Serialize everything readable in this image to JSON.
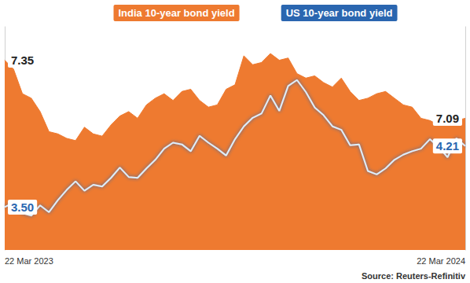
{
  "chart_data": {
    "type": "line",
    "categories": [
      "22 Mar 2023",
      null,
      null,
      null,
      null,
      null,
      null,
      null,
      null,
      null,
      null,
      null,
      null,
      null,
      null,
      null,
      null,
      null,
      null,
      null,
      null,
      null,
      null,
      null,
      null,
      null,
      null,
      null,
      null,
      null,
      null,
      null,
      null,
      null,
      null,
      null,
      null,
      null,
      null,
      null,
      null,
      null,
      null,
      null,
      null,
      null,
      null,
      null,
      null,
      null,
      null,
      null,
      "22 Mar 2024"
    ],
    "series": [
      {
        "name": "India 10-year bond yield",
        "type": "area",
        "color": "#ee7a30",
        "values": [
          7.35,
          7.31,
          7.2,
          7.18,
          7.12,
          7.03,
          7.02,
          7.0,
          6.99,
          7.05,
          7.02,
          7.01,
          7.06,
          7.1,
          7.12,
          7.09,
          7.15,
          7.18,
          7.2,
          7.17,
          7.21,
          7.22,
          7.17,
          7.14,
          7.15,
          7.22,
          7.24,
          7.37,
          7.33,
          7.34,
          7.38,
          7.35,
          7.36,
          7.29,
          7.27,
          7.28,
          7.25,
          7.23,
          7.27,
          7.21,
          7.17,
          7.18,
          7.2,
          7.21,
          7.18,
          7.15,
          7.14,
          7.09,
          7.08,
          7.06,
          7.06,
          7.08,
          7.09
        ],
        "value_labels": [
          "7.35",
          null,
          null,
          null,
          null,
          null,
          null,
          null,
          null,
          null,
          null,
          null,
          null,
          null,
          null,
          null,
          null,
          null,
          null,
          null,
          null,
          null,
          null,
          null,
          null,
          null,
          null,
          null,
          null,
          null,
          null,
          null,
          null,
          null,
          null,
          null,
          null,
          null,
          null,
          null,
          null,
          null,
          null,
          null,
          null,
          null,
          null,
          null,
          null,
          null,
          null,
          null,
          "7.09"
        ]
      },
      {
        "name": "US 10-year bond yield",
        "type": "line",
        "color": "#2a66b0",
        "axis": "y2",
        "values": [
          3.5,
          3.55,
          3.43,
          3.4,
          3.52,
          3.44,
          3.58,
          3.7,
          3.8,
          3.69,
          3.76,
          3.74,
          3.84,
          3.96,
          3.85,
          3.84,
          3.95,
          4.05,
          4.18,
          4.25,
          4.23,
          4.15,
          4.33,
          4.25,
          4.18,
          4.1,
          4.29,
          4.44,
          4.54,
          4.59,
          4.8,
          4.62,
          4.91,
          4.98,
          4.84,
          4.66,
          4.57,
          4.44,
          4.4,
          4.22,
          4.23,
          3.92,
          3.88,
          3.95,
          4.05,
          4.11,
          4.15,
          4.18,
          4.29,
          4.2,
          4.08,
          4.3,
          4.21
        ],
        "value_labels": [
          "3.50",
          null,
          null,
          null,
          null,
          null,
          null,
          null,
          null,
          null,
          null,
          null,
          null,
          null,
          null,
          null,
          null,
          null,
          null,
          null,
          null,
          null,
          null,
          null,
          null,
          null,
          null,
          null,
          null,
          null,
          null,
          null,
          null,
          null,
          null,
          null,
          null,
          null,
          null,
          null,
          null,
          null,
          null,
          null,
          null,
          null,
          null,
          null,
          null,
          null,
          null,
          null,
          "4.21"
        ]
      }
    ],
    "ylim": [
      6.5,
      7.5
    ],
    "y2lim": [
      3.0,
      5.6
    ],
    "tick_labels": "x",
    "data_labels": true,
    "legend": "top",
    "source": "Source: Reuters-Refinitiv"
  }
}
